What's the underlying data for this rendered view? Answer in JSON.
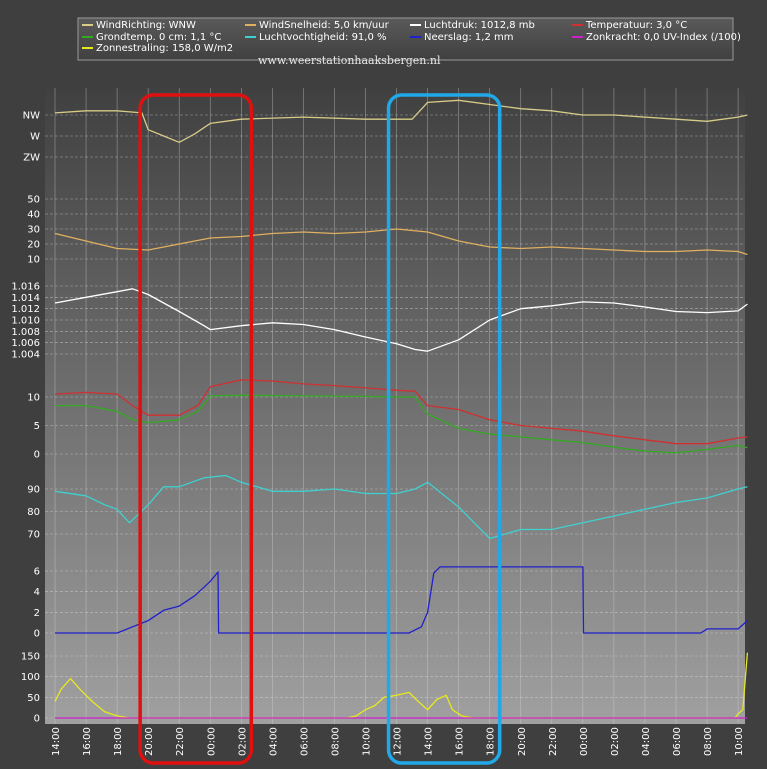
{
  "legend": [
    {
      "label": "WindRichting: WNW",
      "color": "#d8cc88"
    },
    {
      "label": "WindSnelheid: 5,0 km/uur",
      "color": "#e0b060"
    },
    {
      "label": "Luchtdruk: 1012,8 mb",
      "color": "#ffffff"
    },
    {
      "label": "Temperatuur: 3,0 °C",
      "color": "#d03030"
    },
    {
      "label": "Grondtemp. 0 cm: 1,1 °C",
      "color": "#33aa22"
    },
    {
      "label": "Luchtvochtigheid: 91,0 %",
      "color": "#40d0d0"
    },
    {
      "label": "Neerslag: 1,2 mm",
      "color": "#2020cc"
    },
    {
      "label": "Zonkracht: 0,0 UV-Index (/100)",
      "color": "#cc22cc"
    },
    {
      "label": "Zonnestraling: 158,0 W/m2",
      "color": "#e8e820"
    }
  ],
  "watermark": "www.weerstationhaaksbergen.nl",
  "chart_data": {
    "type": "line",
    "x_ticks": [
      "14:00",
      "16:00",
      "18:00",
      "20:00",
      "22:00",
      "00:00",
      "02:00",
      "04:00",
      "06:00",
      "08:00",
      "10:00",
      "12:00",
      "14:00",
      "16:00",
      "18:00",
      "20:00",
      "22:00",
      "00:00",
      "02:00",
      "04:00",
      "06:00",
      "08:00",
      "10:00"
    ],
    "panels": [
      {
        "name": "wind-direction",
        "ticks": [
          "NW",
          "W",
          "ZW"
        ],
        "series": [
          {
            "name": "WindRichting",
            "color": "#d8cc88",
            "x": [
              0,
              1,
              2,
              2.8,
              3,
              3.5,
              4,
              4.5,
              5,
              6,
              8,
              10,
              11.5,
              12,
              13,
              14,
              15,
              16,
              17,
              18,
              19,
              20,
              21,
              22,
              22.3
            ],
            "y": [
              1.1,
              1.2,
              1.2,
              1.1,
              0.3,
              0.0,
              -0.3,
              0.1,
              0.6,
              0.8,
              0.9,
              0.8,
              0.8,
              1.6,
              1.7,
              1.5,
              1.3,
              1.2,
              1.0,
              1.0,
              0.9,
              0.8,
              0.7,
              0.9,
              1.0
            ]
          }
        ]
      },
      {
        "name": "wind-speed",
        "ticks": [
          "50",
          "40",
          "30",
          "20",
          "10"
        ],
        "series": [
          {
            "name": "WindSnelheid",
            "color": "#e0b060",
            "x": [
              0,
              1,
              2,
              3,
              4,
              5,
              6,
              7,
              8,
              9,
              10,
              11,
              12,
              13,
              14,
              15,
              16,
              17,
              18,
              19,
              20,
              21,
              22,
              22.3
            ],
            "y": [
              27,
              22,
              17,
              16,
              20,
              24,
              25,
              27,
              28,
              27,
              28,
              30,
              28,
              22,
              18,
              17,
              18,
              17,
              16,
              15,
              15,
              16,
              15,
              13
            ]
          }
        ]
      },
      {
        "name": "pressure",
        "ticks": [
          "1.016",
          "1.014",
          "1.012",
          "1.010",
          "1.008",
          "1.006",
          "1.004"
        ],
        "series": [
          {
            "name": "Luchtdruk",
            "color": "#ffffff",
            "x": [
              0,
              1,
              2,
              2.5,
              3,
              4,
              4.8,
              5,
              6,
              7,
              8,
              9,
              10,
              11,
              11.6,
              12,
              13,
              14,
              15,
              16,
              17,
              18,
              19,
              20,
              21,
              22,
              22.3
            ],
            "y": [
              1013.0,
              1014.0,
              1015.0,
              1015.5,
              1014.5,
              1011.5,
              1009.0,
              1008.3,
              1009.0,
              1009.5,
              1009.2,
              1008.3,
              1007.0,
              1005.8,
              1004.8,
              1004.5,
              1006.5,
              1010.0,
              1012.0,
              1012.5,
              1013.2,
              1013.0,
              1012.3,
              1011.5,
              1011.3,
              1011.6,
              1012.8
            ]
          }
        ]
      },
      {
        "name": "temperature",
        "ticks": [
          "10",
          "5",
          "0"
        ],
        "series": [
          {
            "name": "Temperatuur",
            "color": "#d03030",
            "x": [
              0,
              1,
              2,
              2.5,
              3,
              4,
              4.6,
              5,
              6,
              7,
              8,
              9,
              10,
              11,
              11.6,
              12,
              13,
              14,
              15,
              16,
              17,
              18,
              19,
              20,
              21,
              22,
              22.3
            ],
            "y": [
              10.5,
              10.8,
              10.5,
              8.5,
              6.8,
              6.8,
              8.5,
              11.8,
              13.0,
              12.8,
              12.3,
              12.0,
              11.6,
              11.2,
              11.0,
              8.5,
              7.8,
              6.0,
              5.0,
              4.5,
              4.0,
              3.2,
              2.5,
              1.8,
              1.8,
              2.8,
              3.0
            ]
          },
          {
            "name": "Grondtemp. 0 cm",
            "color": "#33aa22",
            "x": [
              0,
              1,
              2,
              2.5,
              3,
              4,
              4.6,
              5,
              6,
              8,
              10,
              11,
              11.6,
              12,
              13,
              14,
              15,
              16,
              17,
              18,
              19,
              20,
              21,
              22,
              22.3
            ],
            "y": [
              8.5,
              8.5,
              7.5,
              6.0,
              5.5,
              6.0,
              7.5,
              10.2,
              10.3,
              10.2,
              10.1,
              10.0,
              10.0,
              7.0,
              4.5,
              3.5,
              3.0,
              2.5,
              2.0,
              1.2,
              0.5,
              0.2,
              0.8,
              1.5,
              1.1
            ]
          }
        ]
      },
      {
        "name": "humidity",
        "ticks": [
          "90",
          "80",
          "70"
        ],
        "series": [
          {
            "name": "Luchtvochtigheid",
            "color": "#40d0d0",
            "x": [
              0,
              1,
              1.6,
              2,
              2.4,
              3,
              3.5,
              4,
              4.8,
              5.5,
              6,
              7,
              8,
              9,
              10,
              11,
              11.6,
              12,
              13,
              13.5,
              14,
              15,
              16,
              17,
              18,
              19,
              20,
              21,
              22,
              22.3
            ],
            "y": [
              89,
              87,
              83,
              81,
              75,
              83,
              91,
              91,
              95,
              96,
              93,
              89,
              89,
              90,
              88,
              88,
              90,
              93,
              82,
              75,
              68,
              72,
              72,
              75,
              78,
              81,
              84,
              86,
              90,
              91
            ]
          }
        ]
      },
      {
        "name": "rain",
        "ticks": [
          "6",
          "4",
          "2",
          "0"
        ],
        "series": [
          {
            "name": "Neerslag",
            "color": "#2020cc",
            "x": [
              0,
              2,
              2.5,
              3,
              3.5,
              4,
              4.5,
              5,
              5.25,
              5.27,
              11.4,
              11.8,
              12,
              12.2,
              12.4,
              17,
              17.02,
              20.8,
              21,
              22,
              22.3
            ],
            "y": [
              0,
              0,
              0.6,
              1.2,
              2.2,
              2.6,
              3.6,
              5.0,
              5.9,
              0,
              0,
              0.6,
              2.0,
              5.8,
              6.4,
              6.4,
              0,
              0,
              0.4,
              0.4,
              1.2
            ]
          }
        ]
      },
      {
        "name": "radiation",
        "ticks": [
          "150",
          "100",
          "50",
          "0"
        ],
        "series": [
          {
            "name": "Zonnestraling",
            "color": "#e8e820",
            "x": [
              0,
              0.2,
              0.5,
              0.8,
              1.2,
              1.6,
              2,
              2.4,
              9.4,
              9.7,
              10,
              10.3,
              10.6,
              11,
              11.4,
              11.7,
              12,
              12.3,
              12.6,
              12.8,
              13.1,
              13.3,
              13.5,
              21.9,
              22,
              22.15,
              22.3
            ],
            "y": [
              40,
              70,
              95,
              70,
              40,
              15,
              5,
              0,
              0,
              5,
              20,
              30,
              50,
              55,
              62,
              40,
              20,
              45,
              55,
              20,
              5,
              2,
              0,
              0,
              10,
              20,
              158
            ]
          },
          {
            "name": "Zonkracht",
            "color": "#cc22cc",
            "x": [
              0,
              22.3
            ],
            "y": [
              0,
              0
            ]
          }
        ]
      }
    ],
    "highlights": [
      {
        "color": "#e01010",
        "from_tick": 3,
        "to_tick": 6
      },
      {
        "color": "#20a8e8",
        "from_tick": 11,
        "to_tick": 14
      }
    ]
  }
}
